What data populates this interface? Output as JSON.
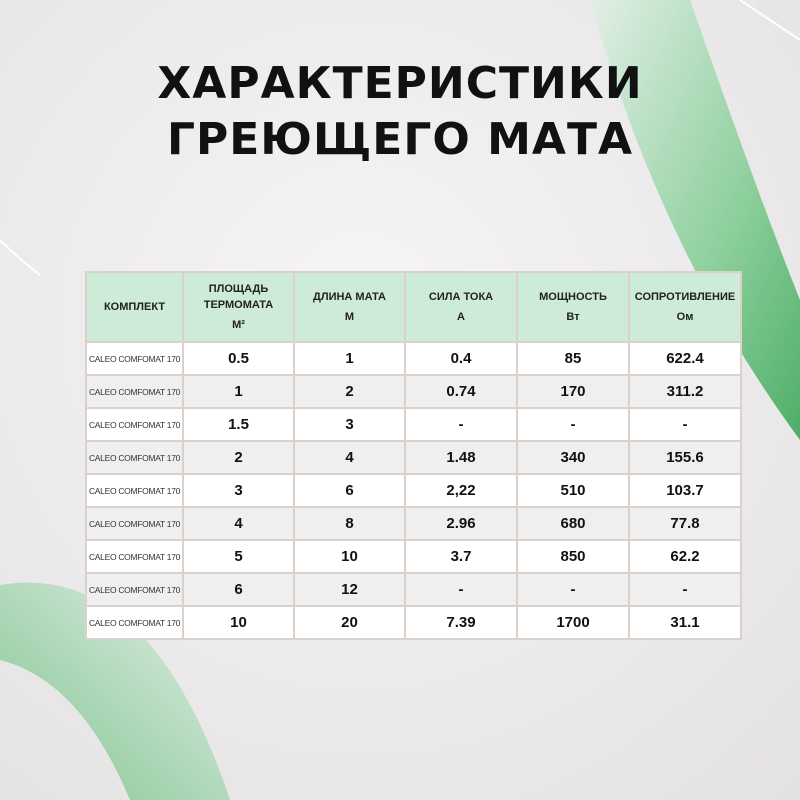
{
  "title_lines": [
    "ХАРАКТЕРИСТИКИ",
    "ГРЕЮЩЕГО МАТА"
  ],
  "colors": {
    "accent_green": "#5bb374",
    "header_bg": "#cdebd6"
  },
  "table": {
    "headers": [
      {
        "label": "КОМПЛЕКТ",
        "unit": ""
      },
      {
        "label": "ПЛОЩАДЬ ТЕРМОМАТА",
        "unit": "М²"
      },
      {
        "label": "ДЛИНА МАТА",
        "unit": "М"
      },
      {
        "label": "СИЛА ТОКА",
        "unit": "А"
      },
      {
        "label": "МОЩНОСТЬ",
        "unit": "Вт"
      },
      {
        "label": "СОПРОТИВЛЕНИЕ",
        "unit": "Ом"
      }
    ],
    "rows": [
      [
        "CALEO COMFOMAT 170",
        "0.5",
        "1",
        "0.4",
        "85",
        "622.4"
      ],
      [
        "CALEO COMFOMAT 170",
        "1",
        "2",
        "0.74",
        "170",
        "311.2"
      ],
      [
        "CALEO COMFOMAT 170",
        "1.5",
        "3",
        "-",
        "-",
        "-"
      ],
      [
        "CALEO COMFOMAT 170",
        "2",
        "4",
        "1.48",
        "340",
        "155.6"
      ],
      [
        "CALEO COMFOMAT 170",
        "3",
        "6",
        "2,22",
        "510",
        "103.7"
      ],
      [
        "CALEO COMFOMAT 170",
        "4",
        "8",
        "2.96",
        "680",
        "77.8"
      ],
      [
        "CALEO COMFOMAT 170",
        "5",
        "10",
        "3.7",
        "850",
        "62.2"
      ],
      [
        "CALEO COMFOMAT 170",
        "6",
        "12",
        "-",
        "-",
        "-"
      ],
      [
        "CALEO COMFOMAT 170",
        "10",
        "20",
        "7.39",
        "1700",
        "31.1"
      ]
    ]
  }
}
